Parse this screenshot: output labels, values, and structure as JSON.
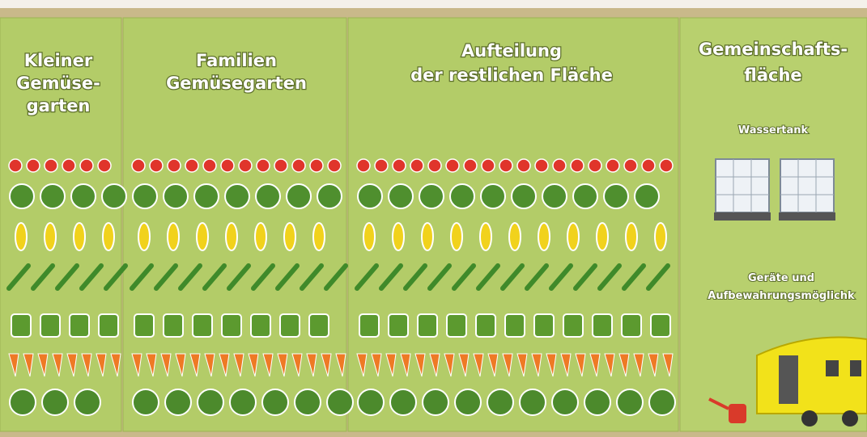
{
  "panels": [
    {
      "title": [
        "Kleiner",
        "Gemüse-",
        "garten"
      ]
    },
    {
      "title": [
        "Familien",
        "Gemüsegarten"
      ]
    },
    {
      "title": [
        "Aufteilung",
        "der restlichen Fläche"
      ]
    },
    {
      "title": [
        "Gemeinschafts-",
        "fläche"
      ],
      "items": [
        "Wassertank",
        "Geräte und",
        "Aufbewahrungsmöglichk"
      ]
    }
  ]
}
